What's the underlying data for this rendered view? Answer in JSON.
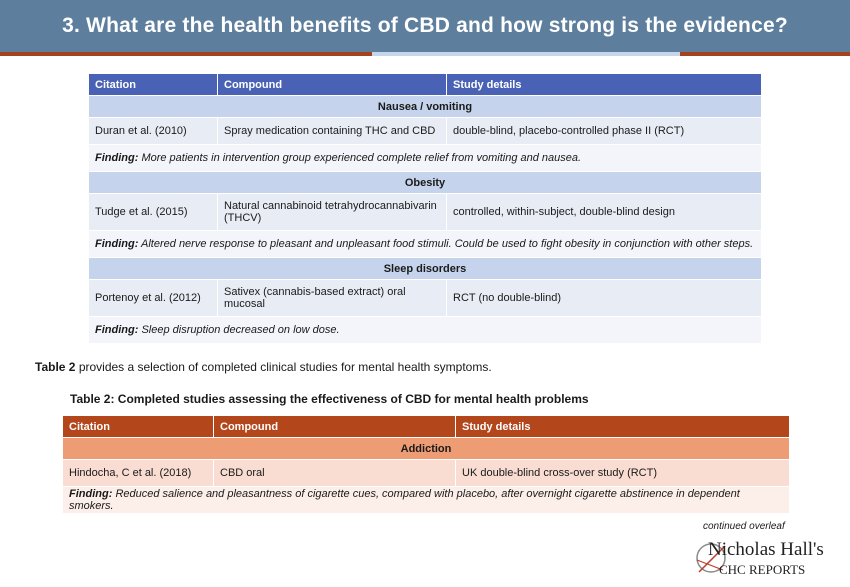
{
  "header": {
    "title": "3. What are the health benefits of CBD and how strong is the evidence?"
  },
  "colors": {
    "header_bg": "#5d7f9d",
    "table1_header": "#4a62b6",
    "table2_header": "#b4461c",
    "table2_section": "#ee9c74"
  },
  "table1": {
    "columns": [
      "Citation",
      "Compound",
      "Study details"
    ],
    "sections": [
      {
        "title": "Nausea / vomiting",
        "citation": "Duran et al. (2010)",
        "compound": "Spray medication containing THC and CBD",
        "details": "double-blind, placebo-controlled phase II (RCT)",
        "finding_label": "Finding:",
        "finding": "More patients in intervention group experienced complete relief from vomiting and nausea."
      },
      {
        "title": "Obesity",
        "citation": "Tudge et al. (2015)",
        "compound": "Natural cannabinoid tetrahydrocannabivarin (THCV)",
        "details": "controlled, within-subject, double-blind design",
        "finding_label": "Finding:",
        "finding": "Altered nerve response to pleasant and unpleasant food stimuli. Could be used to fight obesity in conjunction with other steps."
      },
      {
        "title": "Sleep disorders",
        "citation": "Portenoy et al. (2012)",
        "compound": "Sativex (cannabis-based extract) oral mucosal",
        "details": "RCT (no double-blind)",
        "finding_label": "Finding:",
        "finding": "Sleep disruption decreased on low dose."
      }
    ]
  },
  "intro": {
    "bold": "Table 2",
    "rest": "provides a selection of completed clinical studies for mental health symptoms."
  },
  "table2": {
    "title": "Table 2: Completed studies assessing the effectiveness of CBD for mental health problems",
    "columns": [
      "Citation",
      "Compound",
      "Study details"
    ],
    "sections": [
      {
        "title": "Addiction",
        "citation": "Hindocha, C et al. (2018)",
        "compound": "CBD oral",
        "details": "UK double-blind cross-over study (RCT)",
        "finding_label": "Finding:",
        "finding": "Reduced salience and pleasantness of cigarette cues, compared with placebo, after overnight cigarette abstinence in dependent smokers."
      }
    ]
  },
  "footer": {
    "continued": "continued overleaf"
  },
  "logo": {
    "name": "Nicholas Hall's",
    "sub": "CHC REPORTS"
  }
}
